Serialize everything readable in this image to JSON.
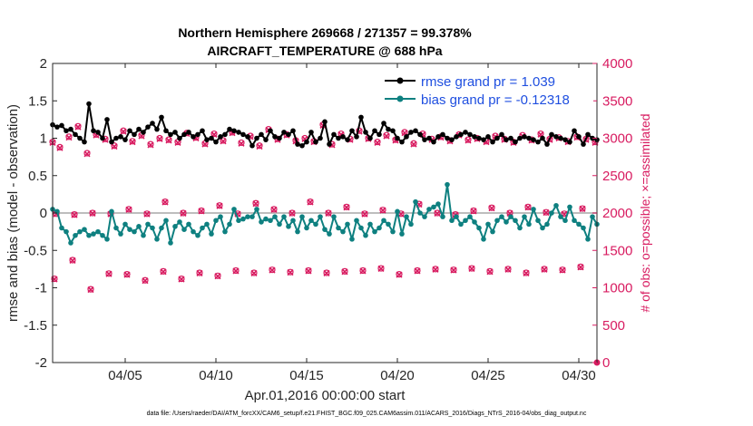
{
  "colors": {
    "rmse": "#000000",
    "bias": "#0e8080",
    "obs": "#d81b60",
    "zero": "#bdbdbd",
    "legend_text": "#1f4fe0"
  },
  "chart_data": {
    "type": "line",
    "title": "Northern Hemisphere 269668 / 271357 = 99.378%",
    "subtitle": "AIRCRAFT_TEMPERATURE @ 688 hPa",
    "xlabel": "Apr.01,2016 00:00:00 start",
    "ylabel": "rmse and bias (model - observation)",
    "y2label": "# of obs: o=possible; ×=assimilated",
    "xlim": [
      1,
      31
    ],
    "ylim": [
      -2,
      2
    ],
    "y2lim": [
      0,
      4000
    ],
    "x_ticks": [
      5,
      10,
      15,
      20,
      25,
      30
    ],
    "x_tick_labels": [
      "04/05",
      "04/10",
      "04/15",
      "04/20",
      "04/25",
      "04/30"
    ],
    "y_ticks": [
      -2,
      -1.5,
      -1,
      -0.5,
      0,
      0.5,
      1,
      1.5,
      2
    ],
    "y_tick_labels": [
      "-2",
      "-1.5",
      "-1",
      "-0.5",
      "0",
      "0.5",
      "1",
      "1.5",
      "2"
    ],
    "y2_ticks": [
      0,
      500,
      1000,
      1500,
      2000,
      2500,
      3000,
      3500,
      4000
    ],
    "y2_tick_labels": [
      "0",
      "500",
      "1000",
      "1500",
      "2000",
      "2500",
      "3000",
      "3500",
      "4000"
    ],
    "legend": [
      "rmse grand pr = 1.039",
      "bias grand pr = -0.12318"
    ],
    "legend_position": "top-right",
    "footnote": "data file: /Users/raeder/DAI/ATM_forcXX/CAM6_setup/f.e21.FHIST_BGC.f09_025.CAM6assim.011/ACARS_2016/Diags_NTrS_2016-04/obs_diag_output.nc",
    "series": [
      {
        "name": "rmse",
        "x": [
          1.0,
          1.25,
          1.5,
          1.75,
          2.0,
          2.25,
          2.5,
          2.75,
          3.0,
          3.25,
          3.5,
          3.75,
          4.0,
          4.25,
          4.5,
          4.75,
          5.0,
          5.25,
          5.5,
          5.75,
          6.0,
          6.25,
          6.5,
          6.75,
          7.0,
          7.25,
          7.5,
          7.75,
          8.0,
          8.25,
          8.5,
          8.75,
          9.0,
          9.25,
          9.5,
          9.75,
          10.0,
          10.25,
          10.5,
          10.75,
          11.0,
          11.25,
          11.5,
          11.75,
          12.0,
          12.25,
          12.5,
          12.75,
          13.0,
          13.25,
          13.5,
          13.75,
          14.0,
          14.25,
          14.5,
          14.75,
          15.0,
          15.25,
          15.5,
          15.75,
          16.0,
          16.25,
          16.5,
          16.75,
          17.0,
          17.25,
          17.5,
          17.75,
          18.0,
          18.25,
          18.5,
          18.75,
          19.0,
          19.25,
          19.5,
          19.75,
          20.0,
          20.25,
          20.5,
          20.75,
          21.0,
          21.25,
          21.5,
          21.75,
          22.0,
          22.25,
          22.5,
          22.75,
          23.0,
          23.25,
          23.5,
          23.75,
          24.0,
          24.25,
          24.5,
          24.75,
          25.0,
          25.25,
          25.5,
          25.75,
          26.0,
          26.25,
          26.5,
          26.75,
          27.0,
          27.25,
          27.5,
          27.75,
          28.0,
          28.25,
          28.5,
          28.75,
          29.0,
          29.25,
          29.5,
          29.75,
          30.0,
          30.25,
          30.5,
          30.75,
          31.0
        ],
        "values": [
          1.18,
          1.15,
          1.17,
          1.1,
          1.12,
          1.05,
          1.0,
          0.95,
          1.46,
          1.1,
          1.08,
          1.0,
          1.25,
          0.95,
          1.0,
          1.02,
          0.98,
          1.1,
          1.05,
          1.12,
          1.08,
          1.15,
          1.2,
          1.12,
          1.28,
          1.1,
          1.05,
          1.08,
          1.0,
          1.05,
          1.08,
          1.02,
          1.05,
          1.1,
          0.98,
          1.0,
          0.95,
          1.02,
          1.05,
          1.12,
          1.1,
          1.08,
          1.05,
          1.02,
          0.9,
          1.0,
          1.05,
          0.98,
          1.1,
          1.02,
          1.0,
          1.08,
          1.05,
          1.1,
          0.92,
          0.9,
          0.95,
          1.08,
          0.95,
          1.0,
          1.22,
          0.92,
          1.05,
          1.0,
          1.02,
          0.98,
          1.1,
          1.02,
          1.28,
          1.08,
          1.0,
          1.1,
          1.05,
          1.2,
          1.12,
          1.1,
          1.0,
          0.95,
          1.02,
          1.08,
          1.1,
          1.05,
          0.98,
          1.0,
          0.95,
          1.02,
          1.05,
          1.0,
          0.98,
          1.02,
          1.05,
          1.08,
          1.05,
          1.02,
          1.0,
          0.98,
          1.02,
          0.95,
          1.0,
          1.05,
          0.98,
          1.0,
          0.95,
          1.0,
          1.02,
          1.0,
          0.98,
          0.95,
          1.0,
          0.92,
          1.05,
          1.02,
          1.0,
          0.98,
          0.95,
          1.1,
          1.02,
          0.92,
          1.05,
          1.0,
          0.98
        ]
      },
      {
        "name": "bias",
        "x": [
          1.0,
          1.25,
          1.5,
          1.75,
          2.0,
          2.25,
          2.5,
          2.75,
          3.0,
          3.25,
          3.5,
          3.75,
          4.0,
          4.25,
          4.5,
          4.75,
          5.0,
          5.25,
          5.5,
          5.75,
          6.0,
          6.25,
          6.5,
          6.75,
          7.0,
          7.25,
          7.5,
          7.75,
          8.0,
          8.25,
          8.5,
          8.75,
          9.0,
          9.25,
          9.5,
          9.75,
          10.0,
          10.25,
          10.5,
          10.75,
          11.0,
          11.25,
          11.5,
          11.75,
          12.0,
          12.25,
          12.5,
          12.75,
          13.0,
          13.25,
          13.5,
          13.75,
          14.0,
          14.25,
          14.5,
          14.75,
          15.0,
          15.25,
          15.5,
          15.75,
          16.0,
          16.25,
          16.5,
          16.75,
          17.0,
          17.25,
          17.5,
          17.75,
          18.0,
          18.25,
          18.5,
          18.75,
          19.0,
          19.25,
          19.5,
          19.75,
          20.0,
          20.25,
          20.5,
          20.75,
          21.0,
          21.25,
          21.5,
          21.75,
          22.0,
          22.25,
          22.5,
          22.75,
          23.0,
          23.25,
          23.5,
          23.75,
          24.0,
          24.25,
          24.5,
          24.75,
          25.0,
          25.25,
          25.5,
          25.75,
          26.0,
          26.25,
          26.5,
          26.75,
          27.0,
          27.25,
          27.5,
          27.75,
          28.0,
          28.25,
          28.5,
          28.75,
          29.0,
          29.25,
          29.5,
          29.75,
          30.0,
          30.25,
          30.5,
          30.75,
          31.0
        ],
        "values": [
          0.05,
          0.02,
          -0.2,
          -0.25,
          -0.4,
          -0.3,
          -0.25,
          -0.22,
          -0.3,
          -0.28,
          -0.25,
          -0.3,
          -0.35,
          0.02,
          -0.2,
          -0.28,
          -0.15,
          -0.22,
          -0.25,
          -0.18,
          -0.3,
          -0.15,
          -0.2,
          -0.35,
          -0.2,
          -0.1,
          -0.4,
          -0.18,
          -0.12,
          -0.22,
          -0.15,
          -0.25,
          -0.3,
          -0.2,
          -0.15,
          -0.28,
          -0.1,
          -0.05,
          -0.25,
          -0.15,
          0.05,
          -0.1,
          -0.08,
          -0.05,
          -0.05,
          0.05,
          -0.12,
          -0.08,
          -0.1,
          -0.05,
          -0.15,
          -0.05,
          -0.18,
          -0.1,
          -0.25,
          -0.05,
          -0.2,
          -0.1,
          -0.15,
          -0.05,
          -0.22,
          -0.28,
          -0.05,
          -0.2,
          -0.25,
          -0.15,
          -0.35,
          -0.1,
          -0.2,
          -0.3,
          -0.15,
          -0.25,
          -0.2,
          -0.1,
          -0.15,
          -0.25,
          0.02,
          -0.28,
          -0.05,
          -0.15,
          0.15,
          0.0,
          -0.05,
          0.05,
          0.08,
          0.12,
          -0.05,
          0.38,
          -0.1,
          -0.05,
          -0.15,
          -0.1,
          -0.05,
          -0.12,
          -0.2,
          -0.35,
          -0.15,
          -0.25,
          -0.1,
          -0.05,
          -0.12,
          -0.05,
          -0.1,
          -0.2,
          -0.05,
          -0.15,
          0.05,
          -0.1,
          -0.2,
          -0.15,
          0.0,
          0.1,
          -0.05,
          -0.1,
          0.08,
          -0.1,
          -0.15,
          -0.2,
          -0.35,
          -0.05,
          -0.15
        ]
      },
      {
        "name": "obs_possible",
        "x": [
          1.0,
          1.4,
          1.9,
          2.4,
          2.9,
          3.4,
          3.9,
          4.4,
          4.9,
          5.4,
          5.9,
          6.4,
          6.9,
          7.4,
          7.9,
          8.4,
          8.9,
          9.4,
          9.9,
          10.4,
          10.9,
          11.4,
          11.9,
          12.4,
          12.9,
          13.4,
          13.9,
          14.4,
          14.9,
          15.4,
          15.9,
          16.4,
          16.9,
          17.4,
          17.9,
          18.4,
          18.9,
          19.4,
          19.9,
          20.4,
          20.9,
          21.4,
          21.9,
          22.4,
          22.9,
          23.4,
          23.9,
          24.4,
          24.9,
          25.4,
          25.9,
          26.4,
          26.9,
          27.4,
          27.9,
          28.4,
          28.9,
          29.4,
          29.9,
          30.4,
          30.9,
          1.2,
          2.2,
          3.2,
          4.2,
          5.2,
          6.2,
          7.2,
          8.2,
          9.2,
          10.2,
          11.2,
          12.2,
          13.2,
          14.2,
          15.2,
          16.2,
          17.2,
          18.2,
          19.2,
          20.2,
          21.2,
          22.2,
          23.2,
          24.2,
          25.2,
          26.2,
          27.2,
          28.2,
          29.2,
          30.2,
          1.1,
          2.1,
          3.1,
          4.1,
          5.1,
          6.1,
          7.1,
          8.1,
          9.1,
          10.1,
          11.1,
          12.1,
          13.1,
          14.1,
          15.1,
          16.1,
          17.1,
          18.1,
          19.1,
          20.1,
          21.1,
          22.1,
          23.1,
          24.1,
          25.1,
          26.1,
          27.1,
          28.1,
          29.1,
          30.1
        ],
        "values": [
          2950,
          2880,
          3020,
          3160,
          2800,
          3050,
          2990,
          2900,
          3100,
          2960,
          3040,
          2920,
          3000,
          2980,
          2950,
          3070,
          3010,
          2930,
          3060,
          2970,
          3080,
          2940,
          3030,
          2900,
          3120,
          2990,
          3050,
          2970,
          3000,
          2960,
          3180,
          2920,
          3060,
          2990,
          3100,
          3000,
          2950,
          3040,
          2980,
          3080,
          2930,
          3060,
          2990,
          3020,
          2970,
          3050,
          2980,
          3000,
          2960,
          3030,
          2990,
          2950,
          3040,
          2980,
          3060,
          2990,
          3010,
          2960,
          3020,
          2990,
          2950,
          1990,
          1980,
          2000,
          1990,
          2050,
          1990,
          2150,
          2000,
          2030,
          2100,
          1990,
          2130,
          2050,
          2000,
          2150,
          2000,
          2080,
          1990,
          2040,
          1990,
          2120,
          2000,
          1980,
          2030,
          2070,
          2000,
          2080,
          2010,
          1990,
          2060,
          1120,
          1370,
          980,
          1190,
          1180,
          1100,
          1220,
          1120,
          1200,
          1160,
          1230,
          1200,
          1240,
          1210,
          1230,
          1200,
          1220,
          1230,
          1260,
          1180,
          1230,
          1250,
          1240,
          1260,
          1220,
          1250,
          1200,
          1250,
          1240,
          1280
        ]
      },
      {
        "name": "obs_assimilated",
        "x": [
          1.0,
          1.4,
          1.9,
          2.4,
          2.9,
          3.4,
          3.9,
          4.4,
          4.9,
          5.4,
          5.9,
          6.4,
          6.9,
          7.4,
          7.9,
          8.4,
          8.9,
          9.4,
          9.9,
          10.4,
          10.9,
          11.4,
          11.9,
          12.4,
          12.9,
          13.4,
          13.9,
          14.4,
          14.9,
          15.4,
          15.9,
          16.4,
          16.9,
          17.4,
          17.9,
          18.4,
          18.9,
          19.4,
          19.9,
          20.4,
          20.9,
          21.4,
          21.9,
          22.4,
          22.9,
          23.4,
          23.9,
          24.4,
          24.9,
          25.4,
          25.9,
          26.4,
          26.9,
          27.4,
          27.9,
          28.4,
          28.9,
          29.4,
          29.9,
          30.4,
          30.9,
          1.2,
          2.2,
          3.2,
          4.2,
          5.2,
          6.2,
          7.2,
          8.2,
          9.2,
          10.2,
          11.2,
          12.2,
          13.2,
          14.2,
          15.2,
          16.2,
          17.2,
          18.2,
          19.2,
          20.2,
          21.2,
          22.2,
          23.2,
          24.2,
          25.2,
          26.2,
          27.2,
          28.2,
          29.2,
          30.2,
          1.1,
          2.1,
          3.1,
          4.1,
          5.1,
          6.1,
          7.1,
          8.1,
          9.1,
          10.1,
          11.1,
          12.1,
          13.1,
          14.1,
          15.1,
          16.1,
          17.1,
          18.1,
          19.1,
          20.1,
          21.1,
          22.1,
          23.1,
          24.1,
          25.1,
          26.1,
          27.1,
          28.1,
          29.1,
          30.1
        ],
        "values": [
          2940,
          2870,
          3010,
          3150,
          2790,
          3040,
          2980,
          2890,
          3090,
          2950,
          3030,
          2910,
          2990,
          2970,
          2940,
          3060,
          3000,
          2920,
          3050,
          2960,
          3070,
          2930,
          3020,
          2890,
          3110,
          2980,
          3040,
          2960,
          2990,
          2950,
          3170,
          2910,
          3050,
          2980,
          3090,
          2990,
          2940,
          3030,
          2970,
          3070,
          2920,
          3050,
          2980,
          3010,
          2960,
          3040,
          2970,
          2990,
          2950,
          3020,
          2980,
          2940,
          3030,
          2970,
          3050,
          2980,
          3000,
          2950,
          3010,
          2980,
          2940,
          1985,
          1975,
          1995,
          1985,
          2045,
          1985,
          2145,
          1995,
          2025,
          2095,
          1985,
          2125,
          2045,
          1995,
          2145,
          1995,
          2075,
          1985,
          2035,
          1985,
          2115,
          1995,
          1975,
          2025,
          2065,
          1995,
          2075,
          2005,
          1985,
          2055,
          1115,
          1365,
          975,
          1185,
          1175,
          1095,
          1215,
          1115,
          1195,
          1155,
          1225,
          1195,
          1235,
          1205,
          1225,
          1195,
          1215,
          1225,
          1255,
          1175,
          1225,
          1245,
          1235,
          1255,
          1215,
          1245,
          1195,
          1245,
          1235,
          1275
        ]
      }
    ]
  }
}
